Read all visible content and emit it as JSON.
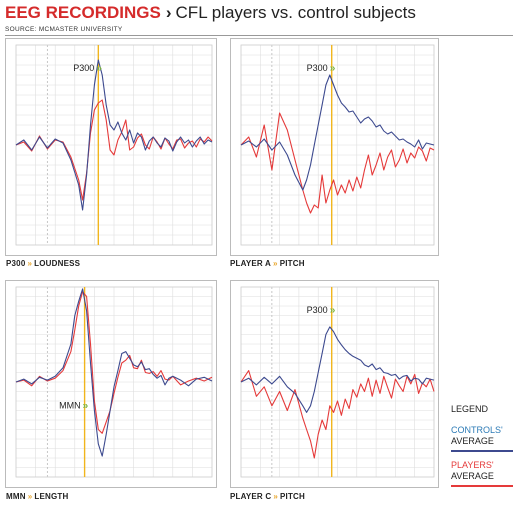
{
  "header": {
    "title_red": "EEG RECORDINGS",
    "title_sep": "›",
    "title_sub": "CFL players vs. control subjects",
    "source": "SOURCE: MCMASTER UNIVERSITY"
  },
  "colors": {
    "controls": "#3d4a8f",
    "players": "#e53a3a",
    "marker": "#f1b51c",
    "grid": "#dedede",
    "arrow": "#7cb342"
  },
  "legend": {
    "title": "LEGEND",
    "controls_line1": "CONTROLS'",
    "controls_line2": "AVERAGE",
    "players_line1": "PLAYERS'",
    "players_line2": "AVERAGE"
  },
  "panels": [
    {
      "caption_left": "P300",
      "caption_right": "LOUDNESS",
      "marker_label": "P300",
      "marker_arrow": "»"
    },
    {
      "caption_left": "PLAYER A",
      "caption_right": "PITCH",
      "marker_label": "P300",
      "marker_arrow": "»"
    },
    {
      "caption_left": "MMN",
      "caption_right": "LENGTH",
      "marker_label": "MMN",
      "marker_arrow": "»"
    },
    {
      "caption_left": "PLAYER C",
      "caption_right": "PITCH",
      "marker_label": "P300",
      "marker_arrow": "»"
    }
  ],
  "caption_arrow": "»",
  "chart_data": [
    {
      "type": "line",
      "title": "P300 LOUDNESS",
      "x": [
        0,
        4,
        8,
        12,
        16,
        20,
        24,
        28,
        32,
        34,
        36,
        38,
        40,
        42,
        44,
        46,
        48,
        50,
        52,
        54,
        56,
        58,
        60,
        62,
        64,
        66,
        68,
        70,
        72,
        74,
        76,
        78,
        80,
        82,
        84,
        86,
        88,
        90,
        92,
        94,
        96,
        98,
        100
      ],
      "xlim": [
        0,
        100
      ],
      "ylim": [
        -10,
        10
      ],
      "marker_x": 42,
      "series": [
        {
          "name": "controls",
          "values": [
            0,
            0.5,
            -0.5,
            0.8,
            -0.3,
            0.6,
            0.2,
            -1.5,
            -4,
            -6.5,
            -3,
            2,
            6,
            8.5,
            7,
            4,
            2,
            1.5,
            2.3,
            1.2,
            0.5,
            1.5,
            0.2,
            1.2,
            0.8,
            -0.5,
            0.4,
            0.8,
            0.2,
            -0.2,
            0.7,
            0.4,
            -0.6,
            0.3,
            0.8,
            0.2,
            0.5,
            -0.2,
            0.4,
            0.8,
            0.1,
            0.5,
            0.3
          ]
        },
        {
          "name": "players",
          "values": [
            0,
            0.3,
            -0.6,
            0.9,
            -0.4,
            0.5,
            0.3,
            -1.2,
            -3.5,
            -5.5,
            -2.8,
            1.2,
            3.5,
            4.2,
            4.5,
            2.5,
            -0.5,
            -1,
            0.5,
            1.3,
            2.5,
            -0.5,
            -0.2,
            0.7,
            1.1,
            0,
            -0.4,
            0.8,
            0.3,
            -0.4,
            0.7,
            0.1,
            -0.4,
            0.5,
            0.6,
            -0.3,
            0.2,
            0.4,
            -0.2,
            0.6,
            0.3,
            0.8,
            0.4
          ]
        }
      ]
    },
    {
      "type": "line",
      "title": "PLAYER A PITCH",
      "x": [
        0,
        4,
        8,
        12,
        16,
        20,
        24,
        28,
        32,
        34,
        36,
        38,
        40,
        42,
        44,
        46,
        48,
        50,
        52,
        54,
        56,
        58,
        60,
        62,
        64,
        66,
        68,
        70,
        72,
        74,
        76,
        78,
        80,
        82,
        84,
        86,
        88,
        90,
        92,
        94,
        96,
        98,
        100
      ],
      "xlim": [
        0,
        100
      ],
      "ylim": [
        -10,
        10
      ],
      "marker_x": 47,
      "series": [
        {
          "name": "controls",
          "values": [
            0,
            0.4,
            -0.2,
            0.6,
            -0.5,
            0.3,
            -1,
            -3,
            -4.5,
            -3.5,
            -2,
            0,
            2,
            4,
            6,
            7,
            6,
            5,
            4.2,
            3.8,
            3.3,
            3.4,
            2.8,
            2.2,
            2.6,
            2.8,
            2.4,
            1.8,
            2,
            1.4,
            1.1,
            1.3,
            0.9,
            0.5,
            0.6,
            0.3,
            0.1,
            -0.2,
            0.5,
            -0.4,
            0.2,
            0.1,
            0
          ]
        },
        {
          "name": "players",
          "values": [
            0,
            0.8,
            -1.2,
            2,
            -2.5,
            3.2,
            1.5,
            -1.5,
            -4.5,
            -5.8,
            -6.8,
            -6,
            -6.3,
            -3,
            -5.8,
            -4.5,
            -3.5,
            -5,
            -4,
            -4.8,
            -3.5,
            -4.6,
            -3.2,
            -4.3,
            -2.5,
            -1,
            -3,
            -2,
            -0.8,
            -2.5,
            -1.2,
            -0.5,
            -2.2,
            -1.5,
            -0.4,
            -1.8,
            -0.8,
            -1.3,
            -0.2,
            -0.6,
            -1.6,
            -0.3,
            -0.5
          ]
        }
      ]
    },
    {
      "type": "line",
      "title": "MMN LENGTH",
      "x": [
        0,
        4,
        8,
        12,
        16,
        20,
        24,
        28,
        30,
        32,
        34,
        36,
        38,
        40,
        42,
        44,
        46,
        48,
        50,
        52,
        54,
        56,
        58,
        60,
        62,
        64,
        66,
        68,
        70,
        72,
        74,
        76,
        78,
        80,
        84,
        88,
        92,
        96,
        100
      ],
      "xlim": [
        0,
        100
      ],
      "ylim": [
        -10,
        10
      ],
      "marker_x": 35,
      "series": [
        {
          "name": "controls",
          "values": [
            0,
            0.3,
            -0.2,
            0.5,
            0.2,
            0.6,
            1.5,
            4,
            7,
            8.5,
            9.8,
            7.5,
            2,
            -3,
            -6.5,
            -7.8,
            -5.5,
            -3,
            -0.5,
            1.2,
            3,
            3.2,
            2.5,
            1.8,
            1.6,
            2.1,
            1.3,
            1.4,
            0.8,
            0.4,
            0.7,
            -0.3,
            0.4,
            0.6,
            0.2,
            -0.4,
            0.3,
            0.5,
            0.1
          ]
        },
        {
          "name": "players",
          "values": [
            0,
            0.2,
            -0.4,
            0.6,
            0.1,
            0.4,
            1.2,
            3.2,
            5.5,
            8,
            9.5,
            9,
            4,
            -2,
            -5,
            -5.4,
            -4.2,
            -3,
            -1.2,
            0.5,
            2,
            2.3,
            2.8,
            1.5,
            1.4,
            2.3,
            1,
            0.9,
            1.1,
            0.6,
            1.2,
            0.3,
            0.2,
            0.6,
            -0.3,
            0.1,
            0.4,
            0.1,
            0.5
          ]
        }
      ]
    },
    {
      "type": "line",
      "title": "PLAYER C PITCH",
      "x": [
        0,
        4,
        8,
        12,
        16,
        20,
        24,
        28,
        32,
        34,
        36,
        38,
        40,
        42,
        44,
        46,
        48,
        50,
        52,
        54,
        56,
        58,
        60,
        62,
        64,
        66,
        68,
        70,
        72,
        74,
        76,
        78,
        80,
        82,
        84,
        86,
        88,
        90,
        92,
        94,
        96,
        98,
        100
      ],
      "xlim": [
        0,
        100
      ],
      "ylim": [
        -10,
        10
      ],
      "marker_x": 47,
      "series": [
        {
          "name": "controls",
          "values": [
            0,
            0.4,
            -0.3,
            0.5,
            -0.2,
            0.6,
            -0.5,
            -1.2,
            -2.5,
            -3.2,
            -2.5,
            -1,
            1,
            3,
            5,
            5.8,
            5.3,
            4.5,
            3.9,
            3.4,
            3,
            2.7,
            2.5,
            2.3,
            1.8,
            1.6,
            1.9,
            1.3,
            1.5,
            1,
            0.9,
            0.7,
            0.8,
            0.3,
            0.6,
            0.7,
            0.1,
            0.4,
            0.3,
            -0.2,
            0.4,
            0.3,
            0.2
          ]
        },
        {
          "name": "players",
          "values": [
            0,
            1.2,
            -1.5,
            -0.5,
            -2.5,
            -1,
            -3,
            -0.8,
            -3.8,
            -5,
            -6.2,
            -8,
            -5.5,
            -4,
            -5,
            -2.5,
            -3.2,
            -2,
            -3.5,
            -1.8,
            -2.8,
            -0.8,
            -1.6,
            -0.2,
            -1,
            0.4,
            -1.5,
            0.2,
            -1.2,
            0.6,
            -0.6,
            -1.7,
            0.3,
            -0.4,
            -1,
            0.6,
            -0.2,
            0.8,
            -1.2,
            -0.1,
            -0.5,
            0.3,
            -1
          ]
        }
      ]
    }
  ]
}
